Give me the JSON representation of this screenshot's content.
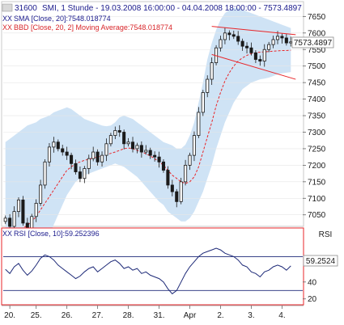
{
  "header": {
    "symbol": "31600",
    "title_rest": "SMI, 1 Stunde - 19.03.2008 16:00:00 - 04.04.2008 18:00:00 - 7573.4897",
    "sma_text": "SMA [Close, 20]:7548.018774",
    "bbd_text": "BBD [Close, 20, 2] Moving Average:7548.018774",
    "xx": "XX"
  },
  "rsi_header": {
    "text": "RSI [Close, 10]:59.252396",
    "xx": "XX"
  },
  "price_tag": "7573.4897",
  "rsi_tag": "59.2524",
  "rsi_axis_title": "RSI",
  "colors": {
    "up": "#1a1a1a",
    "down": "#1a1a1a",
    "band_fill": "#cfe3f5",
    "sma_line": "#e8262a",
    "title": "#1a1a8c",
    "rsi_line": "#1e2a78",
    "channel": "#e8262a"
  },
  "chart_data": [
    {
      "type": "candlestick",
      "title": "SMI, 1 Stunde - 19.03.2008 16:00:00 - 04.04.2008 18:00:00 - 7573.4897",
      "x_labels": [
        "20.",
        "25.",
        "26.",
        "27.",
        "28.",
        "31.",
        "Apr",
        "2.",
        "3.",
        "4."
      ],
      "ylim": [
        7020,
        7690
      ],
      "y_ticks": [
        7050,
        7100,
        7150,
        7200,
        7250,
        7300,
        7350,
        7400,
        7450,
        7500,
        7550,
        7600,
        7650
      ],
      "close": [
        7040,
        7015,
        7060,
        7095,
        7025,
        7010,
        7045,
        7085,
        7140,
        7210,
        7255,
        7270,
        7250,
        7240,
        7230,
        7205,
        7180,
        7160,
        7190,
        7220,
        7240,
        7210,
        7230,
        7265,
        7290,
        7305,
        7300,
        7265,
        7270,
        7250,
        7260,
        7240,
        7245,
        7230,
        7225,
        7210,
        7185,
        7140,
        7120,
        7090,
        7150,
        7200,
        7230,
        7290,
        7360,
        7420,
        7460,
        7510,
        7555,
        7580,
        7600,
        7595,
        7590,
        7575,
        7560,
        7555,
        7540,
        7520,
        7515,
        7550,
        7565,
        7580,
        7590,
        7585,
        7570,
        7573
      ],
      "band_upper": [
        7270,
        7280,
        7290,
        7300,
        7310,
        7320,
        7325,
        7330,
        7340,
        7345,
        7350,
        7360,
        7365,
        7370,
        7375,
        7370,
        7360,
        7350,
        7340,
        7335,
        7330,
        7325,
        7320,
        7318,
        7320,
        7330,
        7345,
        7350,
        7345,
        7340,
        7330,
        7320,
        7310,
        7300,
        7290,
        7280,
        7270,
        7265,
        7260,
        7250,
        7250,
        7262,
        7290,
        7330,
        7390,
        7450,
        7520,
        7570,
        7610,
        7640,
        7660,
        7670,
        7675,
        7675,
        7670,
        7665,
        7660,
        7655,
        7650,
        7645,
        7640,
        7635,
        7630,
        7625,
        7620,
        7615
      ],
      "band_lower": [
        6940,
        6930,
        6920,
        6910,
        6905,
        6900,
        6910,
        6920,
        6940,
        6960,
        6990,
        7020,
        7050,
        7080,
        7110,
        7130,
        7150,
        7160,
        7170,
        7175,
        7180,
        7185,
        7190,
        7195,
        7200,
        7205,
        7200,
        7195,
        7185,
        7175,
        7165,
        7150,
        7135,
        7120,
        7105,
        7090,
        7080,
        7060,
        7050,
        7040,
        7030,
        7030,
        7040,
        7060,
        7090,
        7120,
        7160,
        7200,
        7250,
        7290,
        7330,
        7360,
        7390,
        7410,
        7430,
        7440,
        7450,
        7455,
        7460,
        7462,
        7465,
        7470,
        7475,
        7478,
        7480,
        7482
      ],
      "sma": [
        7010,
        7005,
        7002,
        7005,
        7010,
        7018,
        7030,
        7045,
        7065,
        7085,
        7105,
        7125,
        7145,
        7165,
        7185,
        7195,
        7205,
        7210,
        7215,
        7218,
        7222,
        7225,
        7228,
        7232,
        7236,
        7240,
        7245,
        7250,
        7252,
        7250,
        7245,
        7240,
        7235,
        7228,
        7220,
        7210,
        7200,
        7185,
        7170,
        7160,
        7150,
        7145,
        7150,
        7165,
        7195,
        7240,
        7285,
        7330,
        7380,
        7420,
        7455,
        7480,
        7500,
        7515,
        7525,
        7532,
        7538,
        7540,
        7542,
        7543,
        7544,
        7545,
        7546,
        7547,
        7547,
        7548
      ],
      "channel_upper": [
        7620,
        7595
      ],
      "channel_lower": [
        7535,
        7460
      ],
      "last_value": 7573.4897
    },
    {
      "type": "line",
      "title": "RSI [Close, 10]:59.252396",
      "ylim": [
        14,
        101
      ],
      "y_ticks": [
        20,
        40
      ],
      "reference_lines": [
        30,
        70
      ],
      "values": [
        55,
        50,
        58,
        62,
        54,
        48,
        53,
        60,
        68,
        72,
        70,
        66,
        60,
        56,
        52,
        48,
        44,
        47,
        52,
        56,
        58,
        52,
        56,
        60,
        64,
        66,
        62,
        56,
        58,
        54,
        56,
        50,
        52,
        48,
        46,
        44,
        40,
        32,
        26,
        30,
        40,
        50,
        58,
        64,
        70,
        74,
        76,
        78,
        80,
        78,
        74,
        72,
        70,
        66,
        60,
        58,
        52,
        50,
        46,
        52,
        54,
        58,
        60,
        58,
        54,
        59
      ],
      "last_value": 59.252396
    }
  ]
}
